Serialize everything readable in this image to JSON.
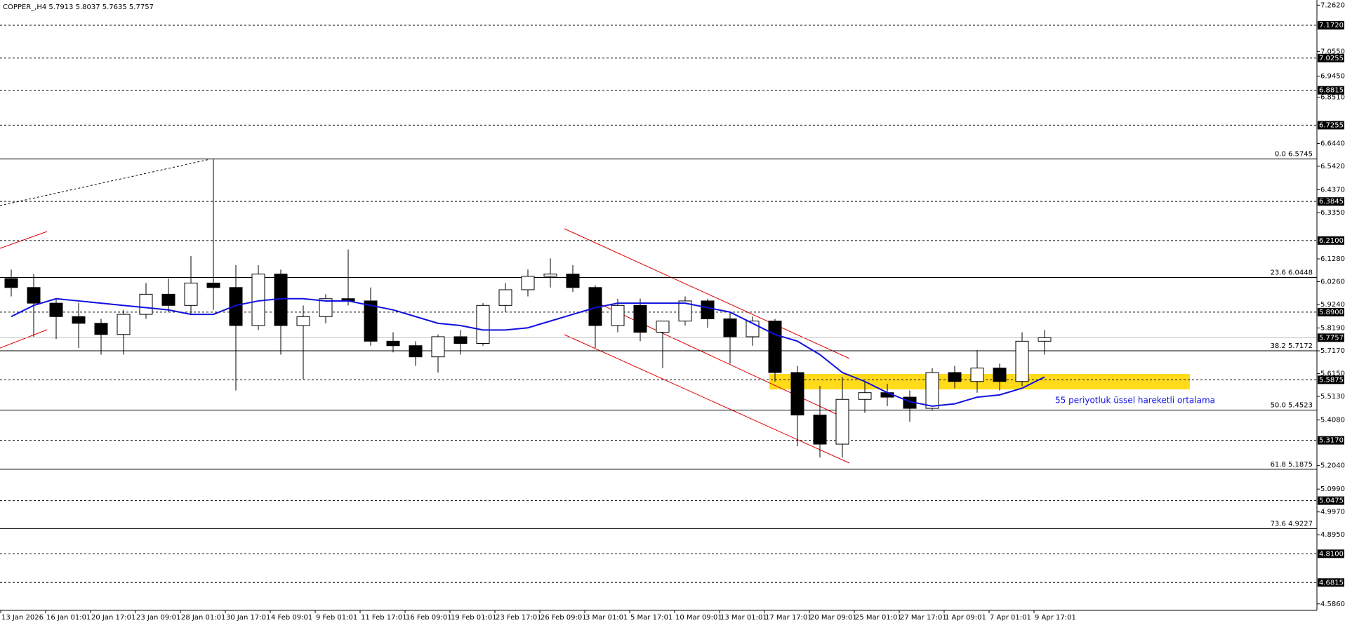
{
  "chart_data": {
    "type": "candlestick",
    "title": "COPPER_,H4  5.7913 5.8037 5.7635 5.7757",
    "categories": [
      "13 Jan 2026",
      null,
      "16 Jan 01:01",
      null,
      "20 Jan 17:01",
      null,
      "23 Jan 09:01",
      null,
      "28 Jan 01:01",
      null,
      "30 Jan 17:01",
      null,
      "4 Feb 09:01",
      null,
      "9 Feb 01:01",
      null,
      "11 Feb 17:01",
      null,
      "16 Feb 09:01",
      null,
      "19 Feb 01:01",
      null,
      "23 Feb 17:01",
      null,
      "26 Feb 09:01",
      null,
      "3 Mar 01:01",
      null,
      "5 Mar 17:01",
      null,
      "10 Mar 09:01",
      null,
      "13 Mar 01:01",
      null,
      "17 Mar 17:01",
      null,
      "20 Mar 09:01",
      null,
      "25 Mar 01:01",
      null,
      "27 Mar 17:01",
      null,
      "1 Apr 09:01",
      null,
      "7 Apr 01:01",
      null,
      "9 Apr 17:01"
    ],
    "open": [
      6.04,
      6.0,
      5.93,
      5.87,
      5.84,
      5.79,
      5.88,
      5.97,
      5.92,
      6.02,
      6.0,
      5.83,
      6.06,
      5.83,
      5.87,
      5.95,
      5.94,
      5.76,
      5.74,
      5.69,
      5.78,
      5.75,
      5.92,
      5.99,
      6.05,
      6.06,
      6.0,
      5.83,
      5.92,
      5.8,
      5.85,
      5.94,
      5.86,
      5.78,
      5.85,
      5.62,
      5.43,
      5.3,
      5.5,
      5.53,
      5.51,
      5.46,
      5.62,
      5.58,
      5.64,
      5.58,
      5.76
    ],
    "high": [
      6.08,
      6.06,
      5.95,
      5.93,
      5.86,
      5.9,
      6.02,
      6.04,
      6.14,
      6.5745,
      6.1,
      6.1,
      6.08,
      5.92,
      5.97,
      6.17,
      6.0,
      5.8,
      5.76,
      5.79,
      5.81,
      5.93,
      6.02,
      6.08,
      6.13,
      6.1,
      6.01,
      5.95,
      5.95,
      5.84,
      5.96,
      5.95,
      5.89,
      5.87,
      5.86,
      5.65,
      5.56,
      5.6,
      5.58,
      5.57,
      5.54,
      5.64,
      5.65,
      5.72,
      5.66,
      5.8,
      5.81
    ],
    "low": [
      5.96,
      5.78,
      5.77,
      5.73,
      5.7,
      5.7,
      5.86,
      5.89,
      5.88,
      5.9,
      5.54,
      5.81,
      5.7,
      5.59,
      5.84,
      5.92,
      5.74,
      5.71,
      5.65,
      5.62,
      5.7,
      5.74,
      5.89,
      5.96,
      6.0,
      5.98,
      5.73,
      5.8,
      5.76,
      5.64,
      5.83,
      5.82,
      5.66,
      5.74,
      5.58,
      5.29,
      5.24,
      5.24,
      5.44,
      5.47,
      5.4,
      5.45,
      5.55,
      5.53,
      5.54,
      5.56,
      5.7
    ],
    "close": [
      6.0,
      5.93,
      5.87,
      5.84,
      5.79,
      5.88,
      5.97,
      5.92,
      6.02,
      6.0,
      5.83,
      6.06,
      5.83,
      5.87,
      5.95,
      5.94,
      5.76,
      5.74,
      5.69,
      5.78,
      5.75,
      5.92,
      5.99,
      6.05,
      6.06,
      6.0,
      5.83,
      5.92,
      5.8,
      5.85,
      5.94,
      5.86,
      5.78,
      5.85,
      5.62,
      5.43,
      5.3,
      5.5,
      5.53,
      5.51,
      5.46,
      5.62,
      5.58,
      5.64,
      5.58,
      5.76,
      5.7757
    ],
    "up_color": "#ffffff",
    "down_color": "#000000",
    "series": [
      {
        "name": "55 periyotluk üssel hareketli ortalama",
        "color": "#1010e0",
        "values": [
          5.87,
          5.92,
          5.95,
          5.94,
          5.93,
          5.92,
          5.91,
          5.9,
          5.88,
          5.88,
          5.92,
          5.94,
          5.95,
          5.95,
          5.94,
          5.94,
          5.92,
          5.9,
          5.87,
          5.84,
          5.83,
          5.81,
          5.81,
          5.82,
          5.85,
          5.88,
          5.91,
          5.93,
          5.93,
          5.93,
          5.93,
          5.91,
          5.89,
          5.84,
          5.79,
          5.76,
          5.7,
          5.62,
          5.58,
          5.53,
          5.49,
          5.47,
          5.48,
          5.51,
          5.52,
          5.55,
          5.6
        ]
      }
    ],
    "ylim": [
      4.557,
      7.285
    ],
    "yticks": [
      {
        "value": 7.262,
        "label": "7.2620"
      },
      {
        "value": 7.055,
        "label": "7.0550"
      },
      {
        "value": 6.945,
        "label": "6.9450"
      },
      {
        "value": 6.851,
        "label": "6.8510"
      },
      {
        "value": 6.644,
        "label": "6.6440"
      },
      {
        "value": 6.542,
        "label": "6.5420"
      },
      {
        "value": 6.437,
        "label": "6.4370"
      },
      {
        "value": 6.335,
        "label": "6.3350"
      },
      {
        "value": 6.128,
        "label": "6.1280"
      },
      {
        "value": 6.026,
        "label": "6.0260"
      },
      {
        "value": 5.924,
        "label": "5.9240"
      },
      {
        "value": 5.819,
        "label": "5.8190"
      },
      {
        "value": 5.717,
        "label": "5.7170"
      },
      {
        "value": 5.615,
        "label": "5.6150"
      },
      {
        "value": 5.513,
        "label": "5.5130"
      },
      {
        "value": 5.408,
        "label": "5.4080"
      },
      {
        "value": 5.204,
        "label": "5.2040"
      },
      {
        "value": 5.099,
        "label": "5.0990"
      },
      {
        "value": 4.997,
        "label": "4.9970"
      },
      {
        "value": 4.895,
        "label": "4.8950"
      },
      {
        "value": 4.586,
        "label": "4.5860"
      }
    ],
    "levels": [
      {
        "value": 7.172,
        "label": "7.1720"
      },
      {
        "value": 7.0255,
        "label": "7.0255"
      },
      {
        "value": 6.8815,
        "label": "6.8815"
      },
      {
        "value": 6.7255,
        "label": "6.7255"
      },
      {
        "value": 6.3845,
        "label": "6.3845"
      },
      {
        "value": 6.21,
        "label": "6.2100"
      },
      {
        "value": 5.89,
        "label": "5.8900"
      },
      {
        "value": 5.5875,
        "label": "5.5875"
      },
      {
        "value": 5.317,
        "label": "5.3170"
      },
      {
        "value": 5.0475,
        "label": "5.0475"
      },
      {
        "value": 4.81,
        "label": "4.8100"
      },
      {
        "value": 4.6815,
        "label": "4.6815"
      }
    ],
    "current_price": {
      "value": 5.7757,
      "label": "5.7757"
    },
    "fib_levels": [
      {
        "value": 6.5745,
        "label": "0.0 6.5745"
      },
      {
        "value": 6.0448,
        "label": "23.6 6.0448"
      },
      {
        "value": 5.7172,
        "label": "38.2 5.7172"
      },
      {
        "value": 5.4523,
        "label": "50.0 5.4523"
      },
      {
        "value": 5.1875,
        "label": "61.8 5.1875"
      },
      {
        "value": 4.9227,
        "label": "73.6 4.9227"
      }
    ]
  }
}
